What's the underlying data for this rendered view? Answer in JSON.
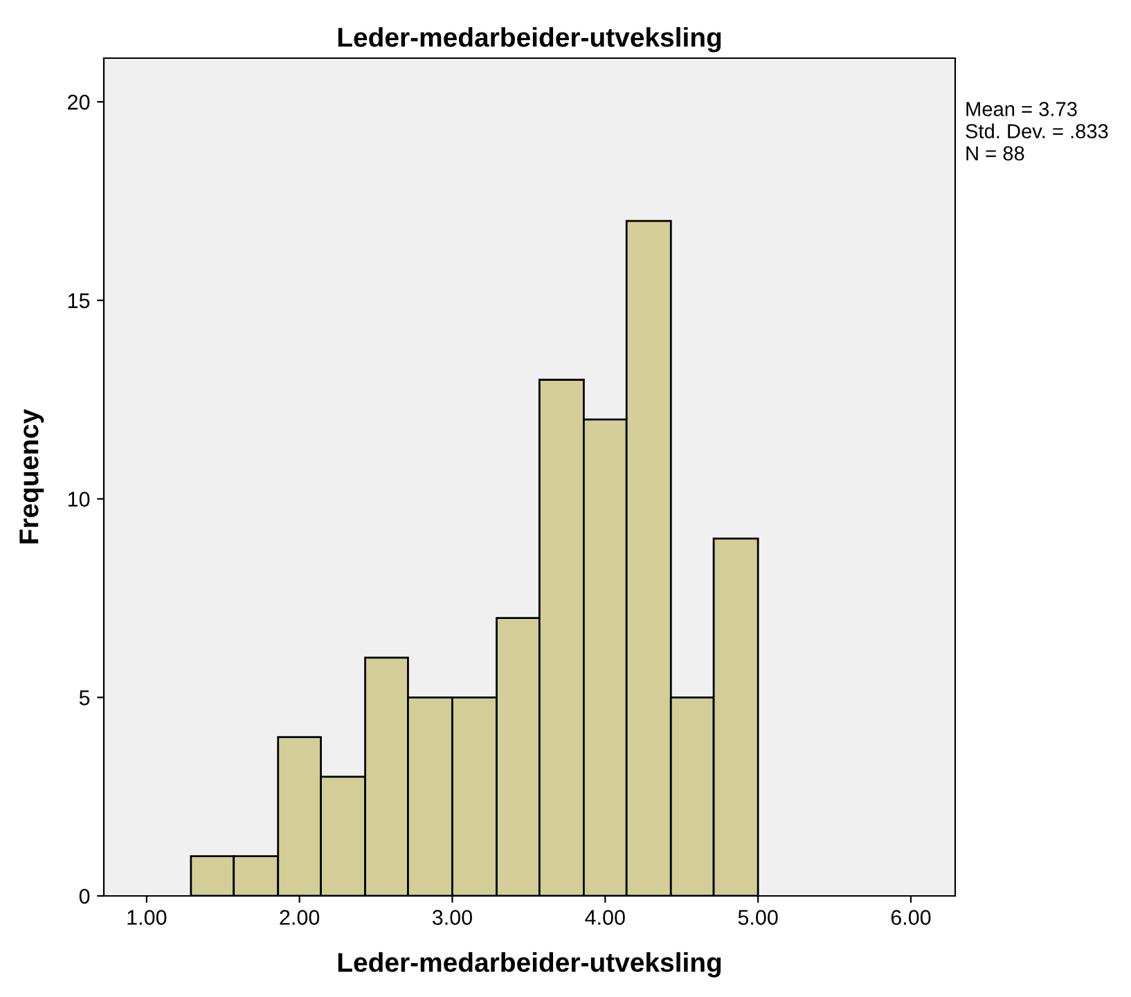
{
  "chart_data": {
    "type": "histogram",
    "title": "Leder-medarbeider-utveksling",
    "xlabel": "Leder-medarbeider-utveksling",
    "ylabel": "Frequency",
    "bins": [
      1.29,
      1.57,
      1.86,
      2.14,
      2.43,
      2.71,
      3.0,
      3.29,
      3.57,
      3.86,
      4.14,
      4.43,
      4.71,
      5.0
    ],
    "values": [
      1,
      1,
      4,
      3,
      6,
      5,
      5,
      7,
      13,
      12,
      17,
      5,
      9
    ],
    "color": "#d3ce97",
    "xlim": [
      0.72,
      6.29
    ],
    "xticks": [
      {
        "value": 1,
        "label": "1.00"
      },
      {
        "value": 2,
        "label": "2.00"
      },
      {
        "value": 3,
        "label": "3.00"
      },
      {
        "value": 4,
        "label": "4.00"
      },
      {
        "value": 5,
        "label": "5.00"
      },
      {
        "value": 6,
        "label": "6.00"
      }
    ],
    "ylim": [
      0,
      21.1
    ],
    "yticks": [
      0,
      5,
      10,
      15,
      20
    ],
    "grid": false,
    "annotations": [
      "Mean = 3.73",
      "Std. Dev. = .833",
      "N = 88"
    ]
  }
}
